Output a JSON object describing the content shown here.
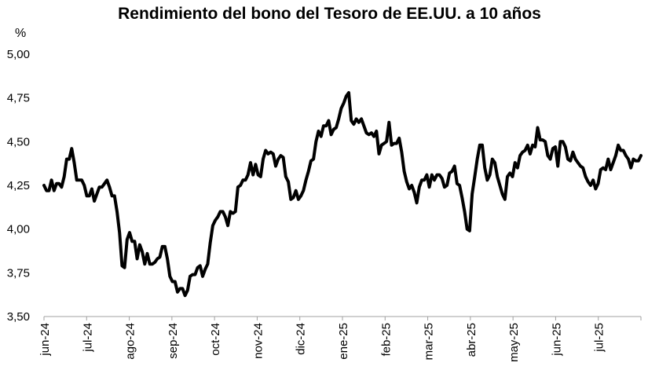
{
  "chart_data": {
    "type": "line",
    "title": "Rendimiento del bono del Tesoro de EE.UU. a 10 años",
    "ylabel": "%",
    "xlabel": "",
    "ylim": [
      3.5,
      5.0
    ],
    "y_ticks": [
      "3,50",
      "3,75",
      "4,00",
      "4,25",
      "4,50",
      "4,75",
      "5,00"
    ],
    "y_tick_values": [
      3.5,
      3.75,
      4.0,
      4.25,
      4.5,
      4.75,
      5.0
    ],
    "x_ticks": [
      "jun-24",
      "jul-24",
      "ago-24",
      "sep-24",
      "oct-24",
      "nov-24",
      "dic-24",
      "ene-25",
      "feb-25",
      "mar-25",
      "abr-25",
      "may-25",
      "jun-25",
      "jul-25"
    ],
    "grid": false,
    "legend": "none",
    "line_color": "#000000",
    "series": [
      {
        "values": [
          4.25,
          4.22,
          4.22,
          4.28,
          4.22,
          4.26,
          4.26,
          4.24,
          4.3,
          4.4,
          4.4,
          4.46,
          4.38,
          4.28,
          4.28,
          4.28,
          4.25,
          4.19,
          4.19,
          4.23,
          4.16,
          4.2,
          4.24,
          4.24,
          4.26,
          4.28,
          4.24,
          4.19,
          4.19,
          4.1,
          3.98,
          3.79,
          3.78,
          3.94,
          3.98,
          3.93,
          3.93,
          3.83,
          3.91,
          3.87,
          3.8,
          3.86,
          3.8,
          3.8,
          3.81,
          3.83,
          3.84,
          3.9,
          3.9,
          3.83,
          3.73,
          3.7,
          3.7,
          3.64,
          3.66,
          3.66,
          3.62,
          3.65,
          3.73,
          3.74,
          3.74,
          3.78,
          3.79,
          3.73,
          3.77,
          3.8,
          3.92,
          4.02,
          4.05,
          4.07,
          4.1,
          4.1,
          4.07,
          4.02,
          4.1,
          4.09,
          4.1,
          4.24,
          4.25,
          4.28,
          4.28,
          4.31,
          4.38,
          4.31,
          4.37,
          4.31,
          4.3,
          4.4,
          4.45,
          4.43,
          4.44,
          4.43,
          4.36,
          4.4,
          4.42,
          4.41,
          4.3,
          4.27,
          4.17,
          4.18,
          4.22,
          4.17,
          4.19,
          4.22,
          4.28,
          4.33,
          4.39,
          4.4,
          4.5,
          4.56,
          4.53,
          4.59,
          4.59,
          4.62,
          4.54,
          4.57,
          4.58,
          4.63,
          4.69,
          4.72,
          4.76,
          4.78,
          4.62,
          4.6,
          4.63,
          4.61,
          4.63,
          4.59,
          4.55,
          4.54,
          4.55,
          4.53,
          4.56,
          4.43,
          4.48,
          4.49,
          4.5,
          4.61,
          4.48,
          4.49,
          4.49,
          4.52,
          4.44,
          4.33,
          4.27,
          4.23,
          4.25,
          4.21,
          4.15,
          4.24,
          4.28,
          4.28,
          4.31,
          4.24,
          4.31,
          4.28,
          4.31,
          4.31,
          4.29,
          4.24,
          4.25,
          4.32,
          4.33,
          4.36,
          4.26,
          4.25,
          4.18,
          4.1,
          4.0,
          3.99,
          4.2,
          4.3,
          4.4,
          4.48,
          4.48,
          4.35,
          4.28,
          4.31,
          4.4,
          4.38,
          4.3,
          4.25,
          4.2,
          4.17,
          4.3,
          4.32,
          4.3,
          4.38,
          4.35,
          4.42,
          4.44,
          4.45,
          4.48,
          4.43,
          4.48,
          4.47,
          4.58,
          4.51,
          4.51,
          4.5,
          4.42,
          4.4,
          4.46,
          4.47,
          4.36,
          4.5,
          4.5,
          4.47,
          4.4,
          4.39,
          4.44,
          4.4,
          4.38,
          4.36,
          4.35,
          4.3,
          4.27,
          4.25,
          4.28,
          4.23,
          4.26,
          4.34,
          4.35,
          4.34,
          4.4,
          4.34,
          4.38,
          4.42,
          4.48,
          4.45,
          4.45,
          4.42,
          4.4,
          4.35,
          4.4,
          4.39,
          4.39,
          4.42
        ]
      }
    ]
  }
}
